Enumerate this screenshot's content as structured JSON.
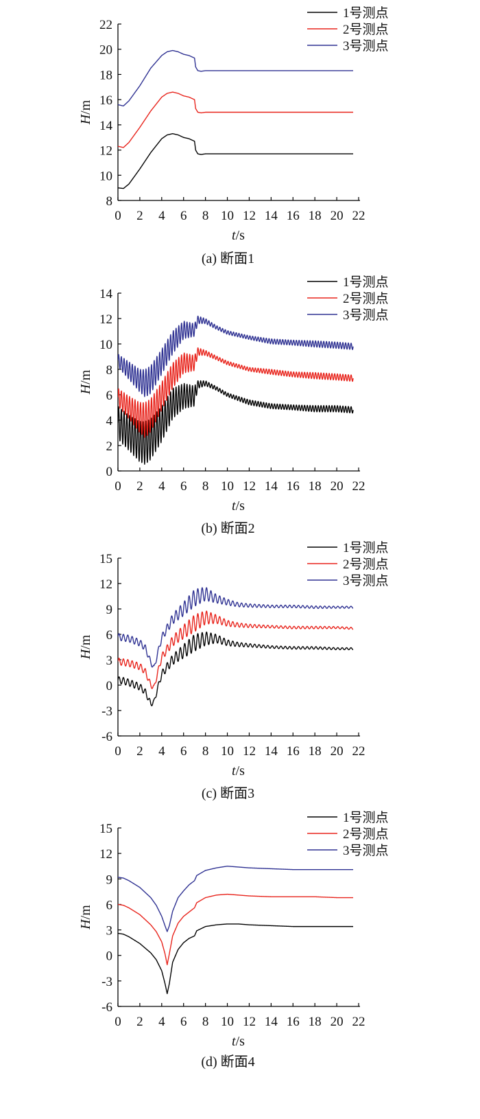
{
  "chart_data": [
    {
      "type": "line",
      "caption": "(a) 断面1",
      "xlabel": "t/s",
      "ylabel": "H/m",
      "xlim": [
        0,
        22
      ],
      "ylim": [
        8,
        22
      ],
      "xticks": [
        0,
        2,
        4,
        6,
        8,
        10,
        12,
        14,
        16,
        18,
        20,
        22
      ],
      "yticks": [
        8,
        10,
        12,
        14,
        16,
        18,
        20,
        22
      ],
      "legend": "top-right",
      "series": [
        {
          "name": "1号测点",
          "color": "#000000",
          "x": [
            0,
            0.5,
            1,
            2,
            3,
            4,
            4.5,
            5,
            5.5,
            6,
            6.5,
            7,
            7.1,
            7.3,
            7.6,
            8,
            10,
            15,
            21.5
          ],
          "y": [
            9.0,
            8.95,
            9.3,
            10.5,
            11.8,
            12.9,
            13.2,
            13.3,
            13.2,
            13.0,
            12.9,
            12.7,
            12.0,
            11.7,
            11.65,
            11.7,
            11.7,
            11.7,
            11.7
          ],
          "osc_amp": 0,
          "osc_period": 1
        },
        {
          "name": "2号测点",
          "color": "#e8231b",
          "x": [
            0,
            0.5,
            1,
            2,
            3,
            4,
            4.5,
            5,
            5.5,
            6,
            6.5,
            7,
            7.1,
            7.3,
            7.6,
            8,
            10,
            15,
            21.5
          ],
          "y": [
            12.3,
            12.2,
            12.6,
            13.8,
            15.1,
            16.2,
            16.5,
            16.6,
            16.5,
            16.3,
            16.2,
            16.0,
            15.3,
            15.0,
            14.95,
            15.0,
            15.0,
            15.0,
            15.0
          ],
          "osc_amp": 0,
          "osc_period": 1
        },
        {
          "name": "3号测点",
          "color": "#2e3192",
          "x": [
            0,
            0.5,
            1,
            2,
            3,
            4,
            4.5,
            5,
            5.5,
            6,
            6.5,
            7,
            7.1,
            7.3,
            7.6,
            8,
            10,
            15,
            21.5
          ],
          "y": [
            15.6,
            15.5,
            15.9,
            17.1,
            18.5,
            19.5,
            19.8,
            19.9,
            19.8,
            19.6,
            19.5,
            19.3,
            18.6,
            18.3,
            18.25,
            18.3,
            18.3,
            18.3,
            18.3
          ],
          "osc_amp": 0,
          "osc_period": 1
        }
      ]
    },
    {
      "type": "line",
      "caption": "(b) 断面2",
      "xlabel": "t/s",
      "ylabel": "H/m",
      "xlim": [
        0,
        22
      ],
      "ylim": [
        0,
        14
      ],
      "xticks": [
        0,
        2,
        4,
        6,
        8,
        10,
        12,
        14,
        16,
        18,
        20,
        22
      ],
      "yticks": [
        0,
        2,
        4,
        6,
        8,
        10,
        12,
        14
      ],
      "legend": "top-right",
      "series": [
        {
          "name": "1号测点",
          "color": "#000000",
          "x": [
            0,
            1,
            2,
            2.5,
            3,
            4,
            5,
            6,
            7,
            7.3,
            8,
            9,
            10,
            12,
            14,
            16,
            18,
            20,
            21.5
          ],
          "y": [
            3.8,
            3.0,
            2.3,
            2.2,
            2.5,
            3.7,
            5.3,
            5.9,
            5.9,
            6.8,
            6.9,
            6.5,
            6.0,
            5.4,
            5.1,
            5.0,
            4.9,
            4.9,
            4.8
          ],
          "osc_amp": [
            1.3,
            1.4,
            1.6,
            1.7,
            1.6,
            1.4,
            1.2,
            1.0,
            0.8,
            0.3,
            0.2,
            0.15,
            0.15,
            0.2,
            0.2,
            0.2,
            0.25,
            0.25,
            0.25
          ],
          "osc_period": 0.25
        },
        {
          "name": "2号测点",
          "color": "#e8231b",
          "x": [
            0,
            1,
            2,
            2.5,
            3,
            4,
            5,
            6,
            7,
            7.3,
            8,
            9,
            10,
            12,
            14,
            16,
            18,
            20,
            21.5
          ],
          "y": [
            5.8,
            5.0,
            4.2,
            4.0,
            4.4,
            5.9,
            7.5,
            8.5,
            8.5,
            9.4,
            9.3,
            8.9,
            8.5,
            8.0,
            7.8,
            7.6,
            7.5,
            7.4,
            7.3
          ],
          "osc_amp": [
            0.7,
            0.9,
            1.2,
            1.4,
            1.3,
            1.1,
            1.0,
            0.8,
            0.6,
            0.3,
            0.2,
            0.15,
            0.15,
            0.15,
            0.2,
            0.2,
            0.25,
            0.25,
            0.25
          ],
          "osc_period": 0.25
        },
        {
          "name": "3号测点",
          "color": "#2e3192",
          "x": [
            0,
            1,
            2,
            2.5,
            3,
            4,
            5,
            6,
            7,
            7.3,
            8,
            9,
            10,
            12,
            14,
            16,
            18,
            20,
            21.5
          ],
          "y": [
            8.7,
            7.9,
            7.1,
            6.9,
            7.2,
            8.6,
            10.1,
            11.1,
            11.1,
            11.9,
            11.8,
            11.3,
            10.9,
            10.5,
            10.2,
            10.1,
            10.0,
            9.9,
            9.8
          ],
          "osc_amp": [
            0.5,
            0.7,
            0.9,
            1.1,
            1.1,
            1.0,
            0.9,
            0.7,
            0.5,
            0.3,
            0.2,
            0.15,
            0.15,
            0.15,
            0.2,
            0.2,
            0.25,
            0.25,
            0.25
          ],
          "osc_period": 0.25
        }
      ]
    },
    {
      "type": "line",
      "caption": "(c) 断面3",
      "xlabel": "t/s",
      "ylabel": "H/m",
      "xlim": [
        0,
        22
      ],
      "ylim": [
        -6,
        15
      ],
      "xticks": [
        0,
        2,
        4,
        6,
        8,
        10,
        12,
        14,
        16,
        18,
        20,
        22
      ],
      "yticks": [
        -6,
        -3,
        0,
        3,
        6,
        9,
        12,
        15
      ],
      "legend": "top-right",
      "series": [
        {
          "name": "1号测点",
          "color": "#000000",
          "x": [
            0,
            0.5,
            1,
            2,
            2.5,
            3,
            3.3,
            3.6,
            4,
            5,
            6,
            7,
            8,
            9,
            10,
            11,
            12,
            14,
            16,
            18,
            20,
            21.5
          ],
          "y": [
            0.6,
            0.5,
            0.3,
            -0.2,
            -0.8,
            -2.2,
            -2.0,
            -0.5,
            1.3,
            3.0,
            4.0,
            5.0,
            5.5,
            5.5,
            5.0,
            4.8,
            4.7,
            4.5,
            4.4,
            4.4,
            4.3,
            4.3
          ],
          "osc_amp": [
            0.4,
            0.4,
            0.4,
            0.4,
            0.35,
            0.3,
            0.3,
            0.3,
            0.4,
            0.6,
            0.8,
            1.0,
            0.8,
            0.5,
            0.35,
            0.25,
            0.2,
            0.15,
            0.15,
            0.15,
            0.12,
            0.12
          ],
          "osc_period": 0.4
        },
        {
          "name": "2号测点",
          "color": "#e8231b",
          "x": [
            0,
            0.5,
            1,
            2,
            2.5,
            3,
            3.3,
            3.6,
            4,
            5,
            6,
            7,
            8,
            9,
            10,
            11,
            12,
            14,
            16,
            18,
            20,
            21.5
          ],
          "y": [
            2.8,
            2.7,
            2.6,
            2.2,
            1.6,
            0.0,
            -0.3,
            1.3,
            3.3,
            5.2,
            6.3,
            7.3,
            8.0,
            7.8,
            7.3,
            7.1,
            7.0,
            6.9,
            6.8,
            6.8,
            6.8,
            6.7
          ],
          "osc_amp": [
            0.4,
            0.4,
            0.4,
            0.4,
            0.35,
            0.3,
            0.3,
            0.3,
            0.4,
            0.6,
            0.8,
            1.0,
            0.8,
            0.5,
            0.35,
            0.25,
            0.2,
            0.15,
            0.15,
            0.15,
            0.12,
            0.12
          ],
          "osc_period": 0.4
        },
        {
          "name": "3号测点",
          "color": "#2e3192",
          "x": [
            0,
            0.5,
            1,
            2,
            2.5,
            3,
            3.3,
            3.6,
            4,
            5,
            6,
            7,
            8,
            9,
            10,
            11,
            12,
            14,
            16,
            18,
            20,
            21.5
          ],
          "y": [
            5.7,
            5.6,
            5.5,
            5.0,
            4.4,
            2.7,
            2.0,
            3.6,
            5.6,
            7.8,
            9.0,
            10.3,
            10.8,
            10.2,
            9.8,
            9.5,
            9.4,
            9.3,
            9.3,
            9.2,
            9.2,
            9.2
          ],
          "osc_amp": [
            0.4,
            0.4,
            0.4,
            0.4,
            0.35,
            0.3,
            0.3,
            0.3,
            0.4,
            0.6,
            0.8,
            1.0,
            0.8,
            0.5,
            0.35,
            0.25,
            0.2,
            0.15,
            0.15,
            0.15,
            0.12,
            0.12
          ],
          "osc_period": 0.4
        }
      ]
    },
    {
      "type": "line",
      "caption": "(d) 断面4",
      "xlabel": "t/s",
      "ylabel": "H/m",
      "xlim": [
        0,
        22
      ],
      "ylim": [
        -6,
        15
      ],
      "xticks": [
        0,
        2,
        4,
        6,
        8,
        10,
        12,
        14,
        16,
        18,
        20,
        22
      ],
      "yticks": [
        -6,
        -3,
        0,
        3,
        6,
        9,
        12,
        15
      ],
      "legend": "top-right",
      "series": [
        {
          "name": "1号测点",
          "color": "#000000",
          "x": [
            0,
            0.5,
            1,
            2,
            3,
            3.5,
            4,
            4.3,
            4.5,
            4.7,
            5,
            5.5,
            6,
            6.5,
            7,
            7.2,
            8,
            9,
            10,
            11,
            12,
            14,
            16,
            18,
            20,
            21.5
          ],
          "y": [
            2.6,
            2.5,
            2.2,
            1.4,
            0.3,
            -0.5,
            -1.8,
            -3.3,
            -4.5,
            -3.3,
            -0.8,
            0.7,
            1.5,
            2.0,
            2.3,
            2.9,
            3.4,
            3.6,
            3.7,
            3.7,
            3.6,
            3.5,
            3.4,
            3.4,
            3.4,
            3.4
          ],
          "osc_amp": 0,
          "osc_period": 1
        },
        {
          "name": "2号测点",
          "color": "#e8231b",
          "x": [
            0,
            0.5,
            1,
            2,
            3,
            3.5,
            4,
            4.3,
            4.5,
            4.7,
            5,
            5.5,
            6,
            6.5,
            7,
            7.2,
            8,
            9,
            10,
            11,
            12,
            14,
            16,
            18,
            20,
            21.5
          ],
          "y": [
            6.0,
            5.9,
            5.6,
            4.8,
            3.6,
            2.8,
            1.6,
            0.2,
            -1.1,
            0.2,
            2.3,
            3.8,
            4.6,
            5.1,
            5.6,
            6.2,
            6.8,
            7.1,
            7.2,
            7.1,
            7.0,
            6.9,
            6.9,
            6.9,
            6.8,
            6.8
          ],
          "osc_amp": 0,
          "osc_period": 1
        },
        {
          "name": "3号测点",
          "color": "#2e3192",
          "x": [
            0,
            0.5,
            1,
            2,
            3,
            3.5,
            4,
            4.3,
            4.5,
            4.7,
            5,
            5.5,
            6,
            6.5,
            7,
            7.2,
            8,
            9,
            10,
            11,
            12,
            14,
            16,
            18,
            20,
            21.5
          ],
          "y": [
            9.2,
            9.1,
            8.8,
            8.0,
            6.8,
            5.9,
            4.6,
            3.5,
            2.8,
            3.5,
            5.2,
            6.8,
            7.6,
            8.3,
            8.8,
            9.4,
            10.0,
            10.3,
            10.5,
            10.4,
            10.3,
            10.2,
            10.1,
            10.1,
            10.1,
            10.1
          ],
          "osc_amp": 0,
          "osc_period": 1
        }
      ]
    }
  ]
}
